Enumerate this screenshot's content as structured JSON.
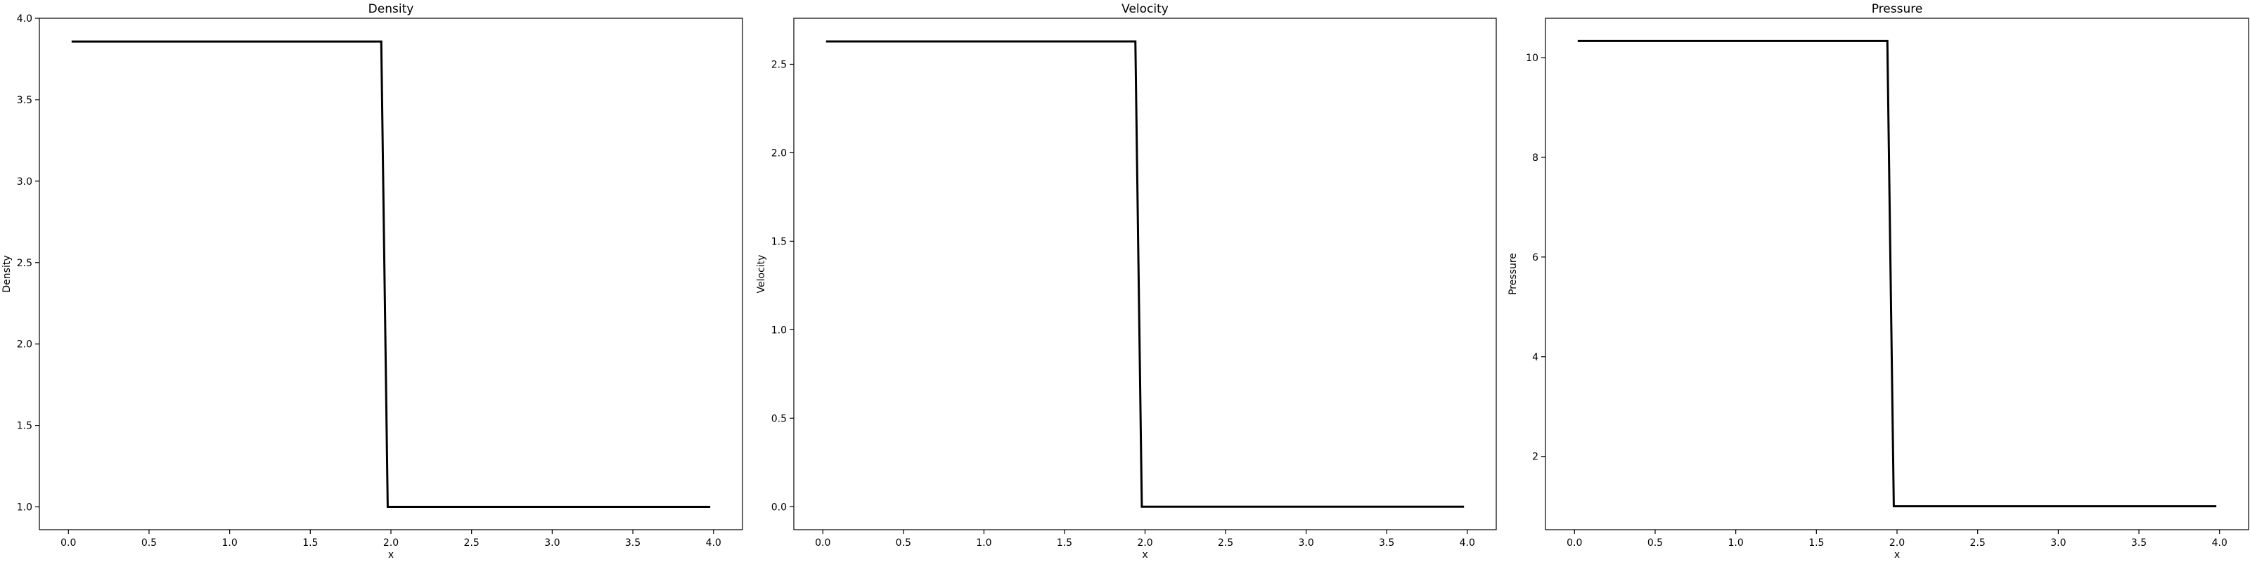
{
  "chart_data": [
    {
      "type": "line",
      "title": "Density",
      "xlabel": "x",
      "ylabel": "Density",
      "xlim": [
        -0.18,
        4.18
      ],
      "ylim": [
        0.86,
        4.0
      ],
      "xticks": [
        0.0,
        0.5,
        1.0,
        1.5,
        2.0,
        2.5,
        3.0,
        3.5,
        4.0
      ],
      "xtick_labels": [
        "0.0",
        "0.5",
        "1.0",
        "1.5",
        "2.0",
        "2.5",
        "3.0",
        "3.5",
        "4.0"
      ],
      "yticks": [
        1.0,
        1.5,
        2.0,
        2.5,
        3.0,
        3.5,
        4.0
      ],
      "ytick_labels": [
        "1.0",
        "1.5",
        "2.0",
        "2.5",
        "3.0",
        "3.5",
        "4.0"
      ],
      "grid": false,
      "series": [
        {
          "color": "#000000",
          "x": [
            0.02,
            1.94,
            1.98,
            3.98
          ],
          "y": [
            3.857,
            3.857,
            1.0,
            1.0
          ]
        }
      ]
    },
    {
      "type": "line",
      "title": "Velocity",
      "xlabel": "x",
      "ylabel": "Velocity",
      "xlim": [
        -0.18,
        4.18
      ],
      "ylim": [
        -0.13,
        2.76
      ],
      "xticks": [
        0.0,
        0.5,
        1.0,
        1.5,
        2.0,
        2.5,
        3.0,
        3.5,
        4.0
      ],
      "xtick_labels": [
        "0.0",
        "0.5",
        "1.0",
        "1.5",
        "2.0",
        "2.5",
        "3.0",
        "3.5",
        "4.0"
      ],
      "yticks": [
        0.0,
        0.5,
        1.0,
        1.5,
        2.0,
        2.5
      ],
      "ytick_labels": [
        "0.0",
        "0.5",
        "1.0",
        "1.5",
        "2.0",
        "2.5"
      ],
      "grid": false,
      "series": [
        {
          "color": "#000000",
          "x": [
            0.02,
            1.94,
            1.98,
            3.98
          ],
          "y": [
            2.629,
            2.629,
            0.0,
            0.0
          ]
        }
      ]
    },
    {
      "type": "line",
      "title": "Pressure",
      "xlabel": "x",
      "ylabel": "Pressure",
      "xlim": [
        -0.18,
        4.18
      ],
      "ylim": [
        0.53,
        10.79
      ],
      "xticks": [
        0.0,
        0.5,
        1.0,
        1.5,
        2.0,
        2.5,
        3.0,
        3.5,
        4.0
      ],
      "xtick_labels": [
        "0.0",
        "0.5",
        "1.0",
        "1.5",
        "2.0",
        "2.5",
        "3.0",
        "3.5",
        "4.0"
      ],
      "yticks": [
        2,
        4,
        6,
        8,
        10
      ],
      "ytick_labels": [
        "2",
        "4",
        "6",
        "8",
        "10"
      ],
      "grid": false,
      "series": [
        {
          "color": "#000000",
          "x": [
            0.02,
            1.94,
            1.98,
            3.98
          ],
          "y": [
            10.333,
            10.333,
            1.0,
            1.0
          ]
        }
      ]
    }
  ]
}
